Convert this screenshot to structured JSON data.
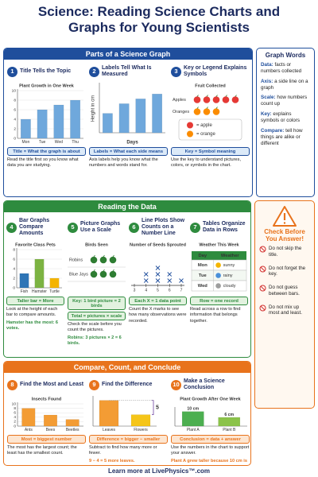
{
  "title": "Science: Reading Science Charts and Graphs for Young Scientists",
  "section1": {
    "heading": "Parts of a Science Graph",
    "cards": [
      {
        "number": 1,
        "title": "Title Tells the Topic",
        "chart": {
          "type": "bar",
          "title": "Plant Growth in One Week",
          "categories": [
            "Mon",
            "Tue",
            "Wed",
            "Thu"
          ],
          "values": [
            4,
            6,
            7,
            8
          ],
          "color": "#6fa8dc",
          "ylim": [
            0,
            10
          ],
          "yticks": [
            0,
            2,
            4,
            6,
            8,
            10
          ]
        },
        "boxes": [
          "Title = What the graph is about"
        ],
        "text": [
          "Read the title first so you know what data you are studying."
        ]
      },
      {
        "number": 2,
        "title": "Labels Tell What Is Measured",
        "chart": {
          "type": "bar",
          "categories": [
            null,
            null,
            null,
            null
          ],
          "values": [
            4,
            6,
            7,
            8
          ],
          "color": "#6fa8dc",
          "ylim": [
            0,
            10
          ],
          "y_label": "Height in cm",
          "x_label": "Days"
        },
        "boxes": [
          "Labels = What each side means"
        ],
        "text": [
          "Axis labels help you know what the numbers and words stand for."
        ]
      },
      {
        "number": 3,
        "title": "Key or Legend Explains Symbols",
        "chart": {
          "type": "pictograph",
          "title": "Fruit Collected",
          "categories": [
            "Apples",
            "Oranges"
          ],
          "values": [
            5,
            3
          ],
          "colors": [
            "#e53935",
            "#fb8c00"
          ],
          "key": [
            {
              "color": "#e53935",
              "label": "= apple"
            },
            {
              "color": "#fb8c00",
              "label": "= orange"
            }
          ]
        },
        "boxes": [
          "Key = Symbol meaning"
        ],
        "text": [
          "Use the key to understand pictures, colors, or symbols in the chart."
        ]
      }
    ]
  },
  "graph_words": {
    "heading": "Graph Words",
    "items": [
      {
        "term": "Data:",
        "definition": "facts or numbers collected"
      },
      {
        "term": "Axis:",
        "definition": "a side line on a graph"
      },
      {
        "term": "Scale:",
        "definition": "how numbers count up"
      },
      {
        "term": "Key:",
        "definition": "explains symbols or colors"
      },
      {
        "term": "Compare:",
        "definition": "tell how things are alike or different"
      }
    ]
  },
  "section2": {
    "heading": "Reading the Data",
    "cards": [
      {
        "number": 4,
        "title": "Bar Graphs Compare Amounts",
        "chart": {
          "type": "bar",
          "title": "Favorite Class Pets",
          "categories": [
            "Fish",
            "Hamster",
            "Turtle"
          ],
          "values": [
            3,
            6,
            2
          ],
          "colors": [
            "#2e75b6",
            "#7cb342",
            "#f4b400"
          ],
          "ylim": [
            0,
            8
          ],
          "yticks": [
            0,
            2,
            4,
            6,
            8
          ]
        },
        "boxes": [
          "Taller bar = More"
        ],
        "text": [
          "Look at the height of each bar to compare amounts.",
          "Hamster has the most: 6 votes."
        ]
      },
      {
        "number": 5,
        "title": "Picture Graphs Use a Scale",
        "chart": {
          "type": "pictograph",
          "title": "Birds Seen",
          "categories": [
            "Robins",
            "Blue Jays"
          ],
          "values": [
            3,
            3
          ],
          "colors": [
            "#2e7d32",
            "#2e7d32"
          ]
        },
        "boxes": [
          "Key: 1 bird picture = 2 birds",
          "Total = pictures × scale"
        ],
        "text": [
          "Check the scale before you count the pictures.",
          "Robins: 3 pictures × 2 = 6 birds."
        ]
      },
      {
        "number": 6,
        "title": "Line Plots Show Counts on a Number Line",
        "chart": {
          "type": "lineplot",
          "title": "Number of Seeds Sprouted",
          "xlim": [
            3,
            7
          ],
          "xticks": [
            3,
            4,
            5,
            6,
            7
          ],
          "counts": [
            0,
            2,
            3,
            2,
            1
          ]
        },
        "boxes": [
          "Each X = 1 data point"
        ],
        "text": [
          "Count the X marks to see how many observations were recorded."
        ]
      },
      {
        "number": 7,
        "title": "Tables Organize Data in Rows",
        "chart": {
          "type": "table",
          "title": "Weather This Week",
          "headers": [
            "Day",
            "Weather"
          ],
          "rows": [
            [
              "Mon",
              "sunny"
            ],
            [
              "Tue",
              "rainy"
            ],
            [
              "Wed",
              "cloudy"
            ]
          ]
        },
        "boxes": [
          "Row = one record"
        ],
        "text": [
          "Read across a row to find information that belongs together."
        ]
      }
    ]
  },
  "check": {
    "heading": "Check Before You Answer!",
    "items": [
      "Do not skip the title.",
      "Do not forget the key.",
      "Do not guess between bars.",
      "Do not mix up most and least."
    ]
  },
  "section3": {
    "heading": "Compare, Count, and Conclude",
    "cards": [
      {
        "number": 8,
        "title": "Find the Most and Least",
        "chart": {
          "type": "bar",
          "title": "Insects Found",
          "categories": [
            "Ants",
            "Bees",
            "Beetles"
          ],
          "values": [
            8,
            5,
            3
          ],
          "color": "#f39c34",
          "ylim": [
            0,
            10
          ],
          "yticks": [
            0,
            2,
            4,
            6,
            8,
            10
          ]
        },
        "boxes": [
          "Most = biggest number"
        ],
        "text": [
          "The most has the largest count; the least has the smallest count."
        ]
      },
      {
        "number": 9,
        "title": "Find the Difference",
        "chart": {
          "type": "bar",
          "categories": [
            "Leaves",
            "Flowers"
          ],
          "values": [
            9,
            4
          ],
          "colors": [
            "#f39c34",
            "#f5c518"
          ],
          "ylim": [
            0,
            10
          ],
          "annotation": 5
        },
        "boxes": [
          "Difference = bigger − smaller"
        ],
        "text": [
          "Subtract to find how many more or fewer.",
          "9 − 4 = 5 more leaves."
        ]
      },
      {
        "number": 10,
        "title": "Make a Science Conclusion",
        "chart": {
          "type": "bar",
          "title": "Plant Growth After One Week",
          "categories": [
            "Plant A",
            "Plant B"
          ],
          "values": [
            10,
            6
          ],
          "value_labels": [
            "10 cm",
            "6 cm"
          ],
          "colors": [
            "#4caf50",
            "#8bc34a"
          ],
          "ylim": [
            0,
            12
          ]
        },
        "boxes": [
          "Conclusion = data + answer"
        ],
        "text": [
          "Use the numbers in the chart to support your answer.",
          "Plant A grew taller because 10 cm is more than 6 cm."
        ]
      }
    ]
  },
  "footer": "Learn more at LivePhysics™.com"
}
